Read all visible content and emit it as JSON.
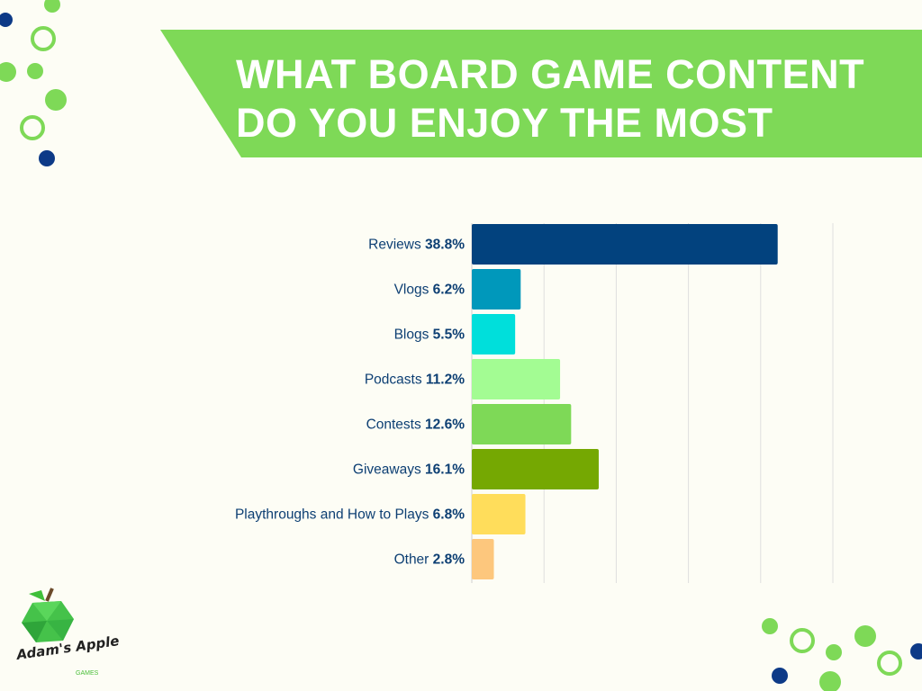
{
  "title": {
    "line1": "WHAT BOARD GAME CONTENT",
    "line2": "DO YOU ENJOY THE MOST"
  },
  "logo": {
    "name": "Adam's Apple",
    "sub": "GAMES"
  },
  "colors": {
    "banner": "#7ed957",
    "accent_blue": "#0d3a87",
    "text": "#0d3f73"
  },
  "chart_data": {
    "type": "bar",
    "orientation": "horizontal",
    "title": "WHAT BOARD GAME CONTENT DO YOU ENJOY THE MOST",
    "categories": [
      "Reviews",
      "Vlogs",
      "Blogs",
      "Podcasts",
      "Contests",
      "Giveaways",
      "Playthroughs and How to Plays",
      "Other"
    ],
    "values": [
      38.8,
      6.2,
      5.5,
      11.2,
      12.6,
      16.1,
      6.8,
      2.8
    ],
    "value_labels": [
      "38.8%",
      "6.2%",
      "5.5%",
      "11.2%",
      "12.6%",
      "16.1%",
      "6.8%",
      "2.8%"
    ],
    "bar_colors": [
      "#02427e",
      "#0098bb",
      "#00dfdb",
      "#a3fc93",
      "#7ed957",
      "#75a802",
      "#ffdd5b",
      "#fdc77d"
    ],
    "xlim": [
      0,
      45.8
    ],
    "grid_count": 5,
    "grid": true,
    "xlabel": "",
    "ylabel": ""
  }
}
